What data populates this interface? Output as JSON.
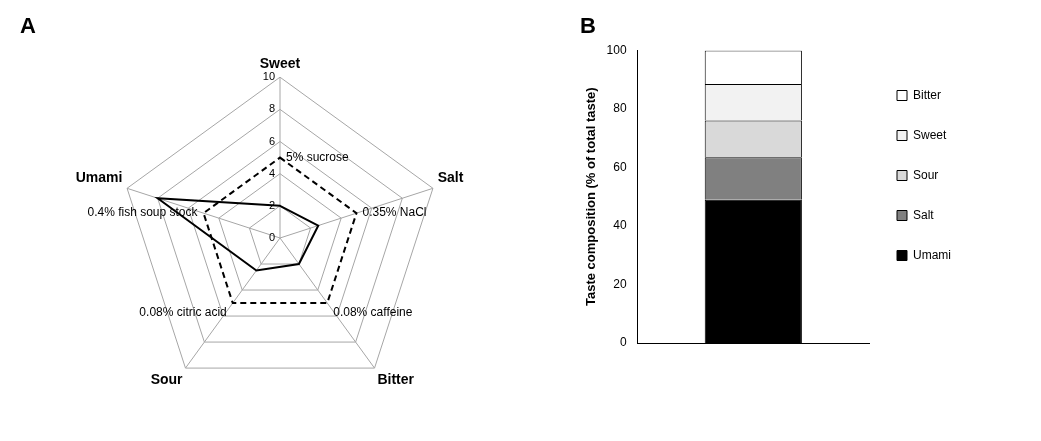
{
  "chart_data": [
    {
      "type": "radar",
      "title": "A",
      "categories": [
        "Sweet",
        "Salt",
        "Bitter",
        "Sour",
        "Umami"
      ],
      "ylim": [
        0,
        10
      ],
      "yticks": [
        0,
        2,
        4,
        6,
        8,
        10
      ],
      "grid": true,
      "series": [
        {
          "color": "#000000",
          "line_style": "solid",
          "values": [
            2,
            2.5,
            2,
            2.5,
            8
          ]
        },
        {
          "color": "#000000",
          "line_style": "dashed",
          "values": [
            5,
            5,
            5,
            5,
            5
          ]
        }
      ],
      "annotations": [
        {
          "text": "5% sucrose",
          "category": "Sweet",
          "value": 5
        },
        {
          "text": "0.35% NaCl",
          "category": "Salt",
          "value": 5
        },
        {
          "text": "0.08% caffeine",
          "category": "Bitter",
          "value": 5
        },
        {
          "text": "0.08% citric acid",
          "category": "Sour",
          "value": 5
        },
        {
          "text": "0.4% fish soup stock",
          "category": "Umami",
          "value": 5
        }
      ]
    },
    {
      "type": "bar",
      "title": "B",
      "stacked": true,
      "categories": [
        null
      ],
      "ylabel": "Taste composition (% of total taste)",
      "ylim": [
        0,
        100
      ],
      "yticks": [
        0,
        20,
        40,
        60,
        80,
        100
      ],
      "grid": false,
      "legend": "right",
      "tick_labels": "y",
      "series": [
        {
          "name": "Umami",
          "color": "#000000",
          "values": [
            49
          ]
        },
        {
          "name": "Salt",
          "color": "#808080",
          "values": [
            14.5
          ]
        },
        {
          "name": "Sour",
          "color": "#d9d9d9",
          "values": [
            12.5
          ]
        },
        {
          "name": "Sweet",
          "color": "#f2f2f2",
          "values": [
            12.5
          ]
        },
        {
          "name": "Bitter",
          "color": "#ffffff",
          "values": [
            11.5
          ]
        }
      ]
    }
  ]
}
